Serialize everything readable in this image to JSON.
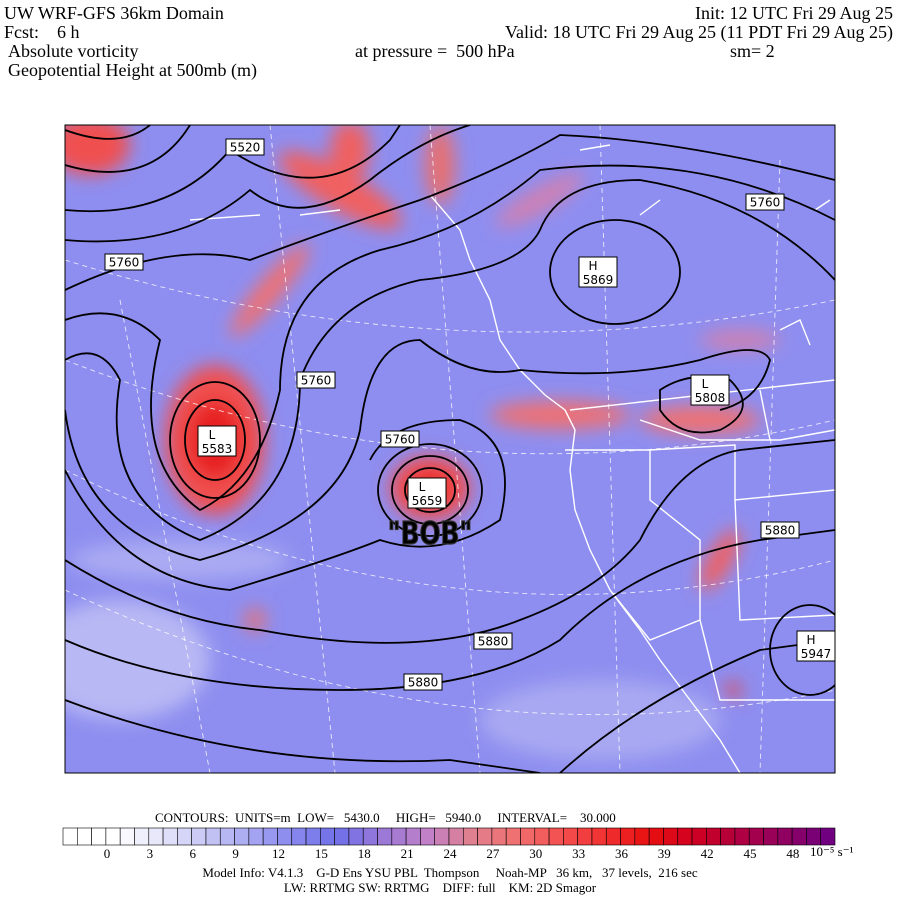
{
  "header": {
    "title": "UW WRF-GFS 36km Domain",
    "init": "Init: 12 UTC Fri 29 Aug 25",
    "fcst": "Fcst:    6 h",
    "valid": "Valid: 18 UTC Fri 29 Aug 25 (11 PDT Fri 29 Aug 25)",
    "field": "Absolute vorticity",
    "pressure": "at pressure =  500 hPa",
    "smooth": "sm= 2",
    "contour_field": "Geopotential Height at 500mb (m)"
  },
  "map": {
    "contour_labels": [
      "5520",
      "5760",
      "5760",
      "5760",
      "5760",
      "5880",
      "5880",
      "5880"
    ],
    "centers": [
      {
        "type": "H",
        "value": "5869"
      },
      {
        "type": "L",
        "value": "5808"
      },
      {
        "type": "L",
        "value": "5583"
      },
      {
        "type": "L",
        "value": "5659"
      },
      {
        "type": "H",
        "value": "5947"
      }
    ],
    "annotation": "\"BOB\""
  },
  "footer": {
    "contours": "CONTOURS:  UNITS=m  LOW=   5430.0     HIGH=   5940.0     INTERVAL=    30.000",
    "colorbar": {
      "ticks": [
        0,
        3,
        6,
        9,
        12,
        15,
        18,
        21,
        24,
        27,
        30,
        33,
        36,
        39,
        42,
        45,
        48
      ],
      "unit": "10⁻⁵ s⁻¹",
      "colors": [
        "#ffffff",
        "#ffffff",
        "#e6e6fa",
        "#c8c8f5",
        "#a8a8f2",
        "#8888ee",
        "#7070e8",
        "#9a78d8",
        "#c080c8",
        "#e08090",
        "#f07070",
        "#f45050",
        "#f03030",
        "#e81010",
        "#d00020",
        "#b00040",
        "#900060",
        "#700080"
      ]
    },
    "model_info": "Model Info: V4.1.3    G-D Ens YSU PBL  Thompson     Noah-MP   36 km,   37 levels,  216 sec",
    "model_info_2": "LW: RRTMG SW: RRTMG    DIFF: full    KM: 2D Smagor"
  }
}
